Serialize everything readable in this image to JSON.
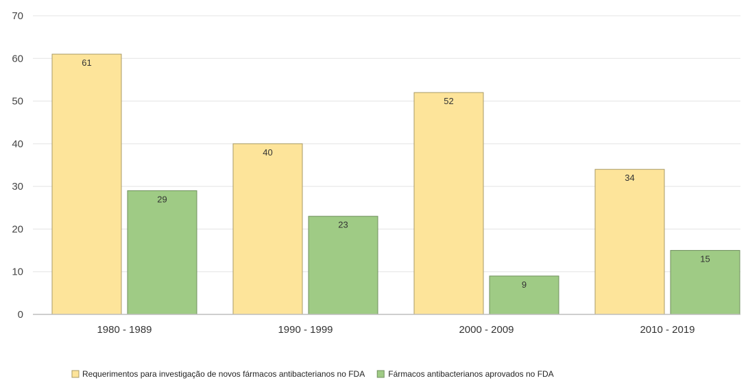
{
  "chart_data": {
    "type": "bar",
    "categories": [
      "1980 - 1989",
      "1990 - 1999",
      "2000 - 2009",
      "2010 - 2019"
    ],
    "series": [
      {
        "name": "Requerimentos para investigação de novos fármacos antibacterianos no FDA",
        "values": [
          61,
          40,
          52,
          34
        ],
        "color": "#fde49a",
        "stroke": "#a89a66"
      },
      {
        "name": "Fármacos antibacterianos aprovados no FDA",
        "values": [
          29,
          23,
          9,
          15
        ],
        "color": "#9fcb85",
        "stroke": "#6f8f5d"
      }
    ],
    "ylim": [
      0,
      70
    ],
    "yticks": [
      0,
      10,
      20,
      30,
      40,
      50,
      60,
      70
    ],
    "grid": true,
    "legend_position": "bottom",
    "data_labels": true,
    "gridline_color": "#e3e3e3",
    "axis_color": "#bdbdbd"
  }
}
